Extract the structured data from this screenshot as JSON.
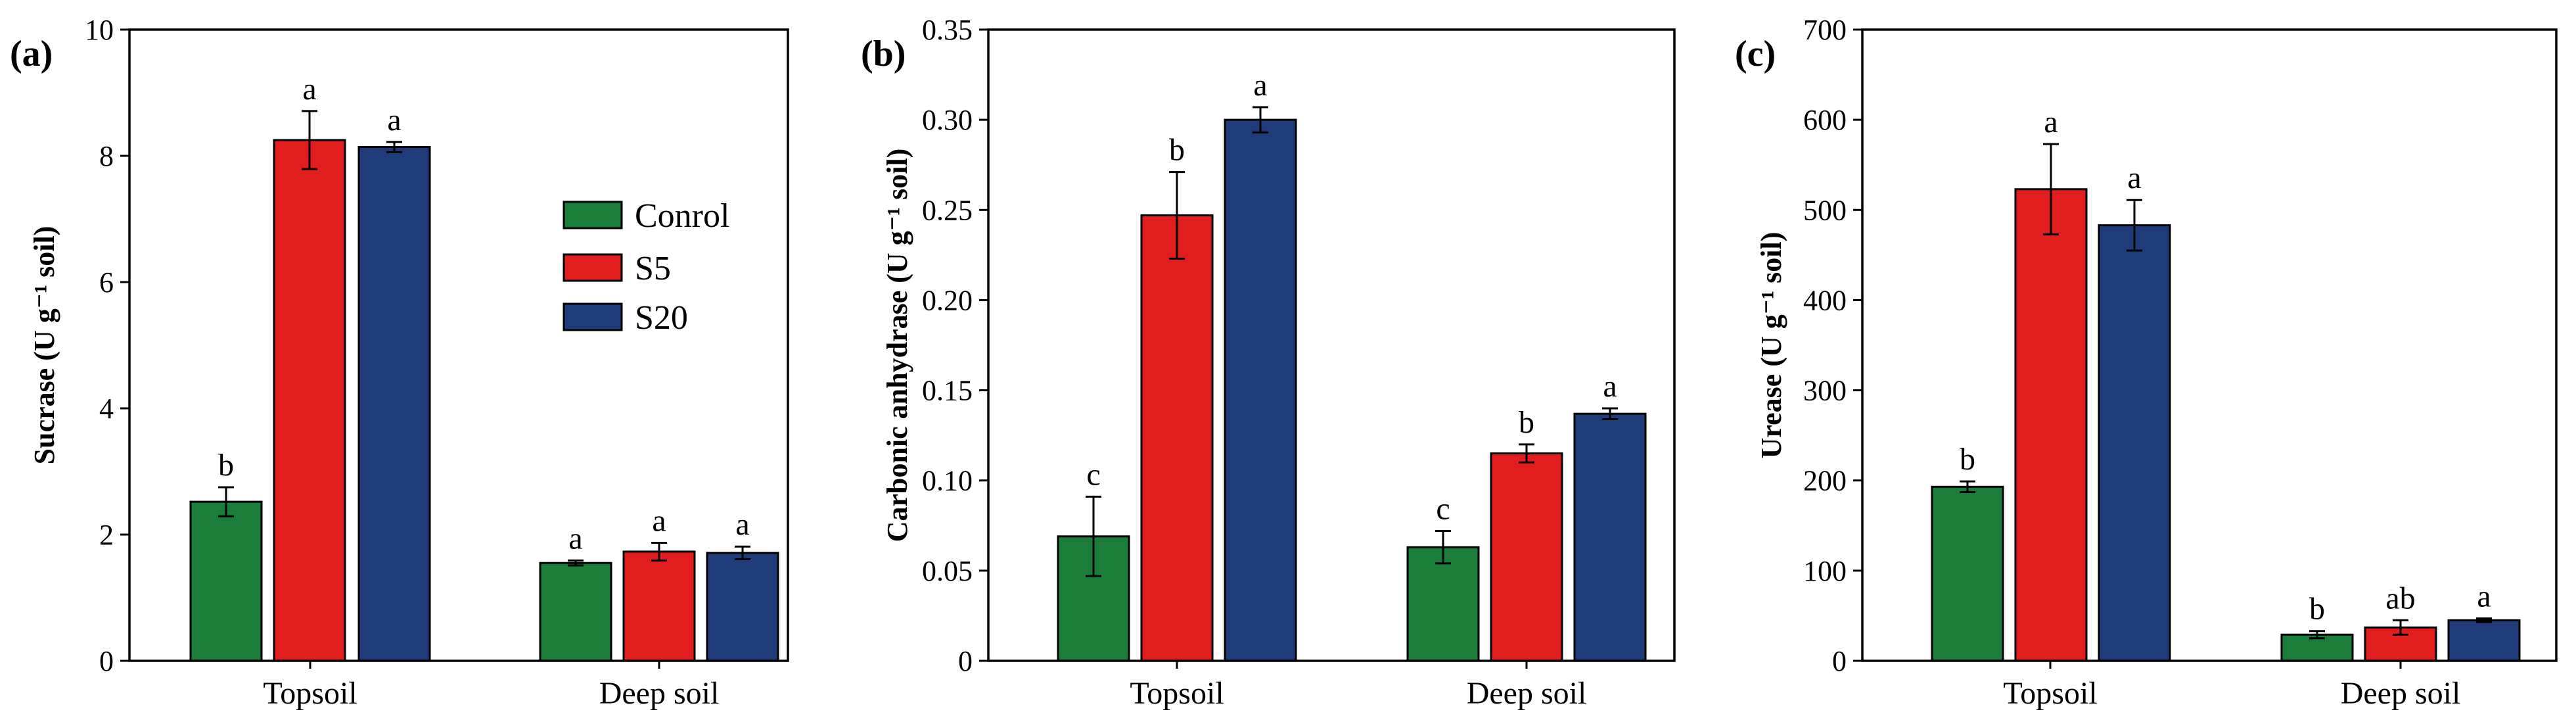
{
  "colors": {
    "Conrol": "#1a7d3a",
    "S5": "#e21d1d",
    "S20": "#1f3b7a"
  },
  "legend": {
    "items": [
      "Conrol",
      "S5",
      "S20"
    ]
  },
  "chart_data": [
    {
      "type": "bar",
      "panel_label": "(a)",
      "title": "",
      "xlabel": "",
      "ylabel": "Sucrase (U g⁻¹ soil)",
      "ylim": [
        0,
        10
      ],
      "yticks": [
        0,
        2,
        4,
        6,
        8,
        10
      ],
      "ytick_labels": [
        "0",
        "2",
        "4",
        "6",
        "8",
        "10"
      ],
      "categories": [
        "Topsoil",
        "Deep soil"
      ],
      "series": [
        {
          "name": "Conrol",
          "values": [
            2.52,
            1.55
          ],
          "errors": [
            0.23,
            0.04
          ],
          "letters": [
            "b",
            "a"
          ]
        },
        {
          "name": "S5",
          "values": [
            8.25,
            1.73
          ],
          "errors": [
            0.46,
            0.14
          ],
          "letters": [
            "a",
            "a"
          ]
        },
        {
          "name": "S20",
          "values": [
            8.14,
            1.71
          ],
          "errors": [
            0.08,
            0.1
          ],
          "letters": [
            "a",
            "a"
          ]
        }
      ],
      "legend_position": "upper-right"
    },
    {
      "type": "bar",
      "panel_label": "(b)",
      "title": "",
      "xlabel": "",
      "ylabel": "Carbonic anhydrase (U g⁻¹ soil)",
      "ylim": [
        0,
        0.35
      ],
      "yticks": [
        0,
        0.05,
        0.1,
        0.15,
        0.2,
        0.25,
        0.3,
        0.35
      ],
      "ytick_labels": [
        "0",
        "0.05",
        "0.10",
        "0.15",
        "0.20",
        "0.25",
        "0.30",
        "0.35"
      ],
      "categories": [
        "Topsoil",
        "Deep soil"
      ],
      "series": [
        {
          "name": "Conrol",
          "values": [
            0.069,
            0.063
          ],
          "errors": [
            0.022,
            0.009
          ],
          "letters": [
            "c",
            "c"
          ]
        },
        {
          "name": "S5",
          "values": [
            0.247,
            0.115
          ],
          "errors": [
            0.024,
            0.005
          ],
          "letters": [
            "b",
            "b"
          ]
        },
        {
          "name": "S20",
          "values": [
            0.3,
            0.137
          ],
          "errors": [
            0.007,
            0.003
          ],
          "letters": [
            "a",
            "a"
          ]
        }
      ]
    },
    {
      "type": "bar",
      "panel_label": "(c)",
      "title": "",
      "xlabel": "",
      "ylabel": "Urease (U g⁻¹ soil)",
      "ylim": [
        0,
        700
      ],
      "yticks": [
        0,
        100,
        200,
        300,
        400,
        500,
        600,
        700
      ],
      "ytick_labels": [
        "0",
        "100",
        "200",
        "300",
        "400",
        "500",
        "600",
        "700"
      ],
      "categories": [
        "Topsoil",
        "Deep soil"
      ],
      "series": [
        {
          "name": "Conrol",
          "values": [
            193,
            29
          ],
          "errors": [
            6,
            4
          ],
          "letters": [
            "b",
            "b"
          ]
        },
        {
          "name": "S5",
          "values": [
            523,
            37
          ],
          "errors": [
            50,
            8
          ],
          "letters": [
            "a",
            "ab"
          ]
        },
        {
          "name": "S20",
          "values": [
            483,
            45
          ],
          "errors": [
            28,
            2
          ],
          "letters": [
            "a",
            "a"
          ]
        }
      ]
    }
  ]
}
